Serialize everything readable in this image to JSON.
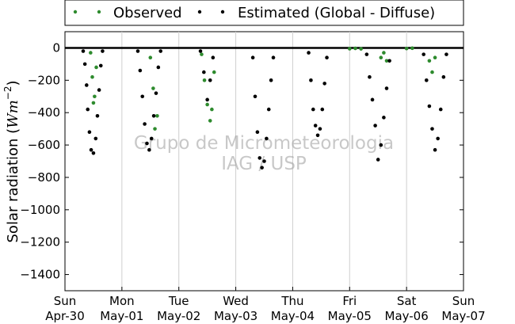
{
  "chart_data": {
    "type": "scatter",
    "title": "",
    "ylabel_text": "Solar radiation (",
    "ylabel_unit": "Wm",
    "ylabel_exp": "−2",
    "ylabel_close": ")",
    "xlabel": "",
    "ylim": [
      -1500,
      100
    ],
    "yticks": [
      0,
      -200,
      -400,
      -600,
      -800,
      -1000,
      -1200,
      -1400
    ],
    "xlim": [
      0,
      7
    ],
    "xticks": [
      {
        "x": 0,
        "day": "Sun",
        "date": "Apr-30"
      },
      {
        "x": 1,
        "day": "Mon",
        "date": "May-01"
      },
      {
        "x": 2,
        "day": "Tue",
        "date": "May-02"
      },
      {
        "x": 3,
        "day": "Wed",
        "date": "May-03"
      },
      {
        "x": 4,
        "day": "Thu",
        "date": "May-04"
      },
      {
        "x": 5,
        "day": "Fri",
        "date": "May-05"
      },
      {
        "x": 6,
        "day": "Sat",
        "date": "May-06"
      },
      {
        "x": 7,
        "day": "Sun",
        "date": "May-07"
      }
    ],
    "grid": "vertical",
    "legend_position": "top",
    "series": [
      {
        "name": "Observed",
        "color": "#2e8b2e",
        "points": [
          [
            0.45,
            -30
          ],
          [
            0.48,
            -180
          ],
          [
            0.5,
            -340
          ],
          [
            0.52,
            -300
          ],
          [
            0.55,
            -120
          ],
          [
            1.5,
            -60
          ],
          [
            1.55,
            -250
          ],
          [
            1.58,
            -500
          ],
          [
            1.62,
            -420
          ],
          [
            2.4,
            -40
          ],
          [
            2.45,
            -200
          ],
          [
            2.5,
            -350
          ],
          [
            2.55,
            -450
          ],
          [
            2.58,
            -380
          ],
          [
            2.62,
            -150
          ],
          [
            5.0,
            -5
          ],
          [
            5.1,
            -3
          ],
          [
            5.2,
            -6
          ],
          [
            5.55,
            -60
          ],
          [
            5.6,
            -30
          ],
          [
            5.65,
            -80
          ],
          [
            6.0,
            -4
          ],
          [
            6.1,
            -2
          ],
          [
            6.4,
            -80
          ],
          [
            6.45,
            -150
          ],
          [
            6.5,
            -60
          ]
        ]
      },
      {
        "name": "Estimated (Global - Diffuse)",
        "color": "#000000",
        "points": [
          [
            0.32,
            -20
          ],
          [
            0.35,
            -100
          ],
          [
            0.38,
            -230
          ],
          [
            0.4,
            -380
          ],
          [
            0.43,
            -520
          ],
          [
            0.46,
            -630
          ],
          [
            0.5,
            -650
          ],
          [
            0.54,
            -560
          ],
          [
            0.57,
            -420
          ],
          [
            0.6,
            -260
          ],
          [
            0.63,
            -110
          ],
          [
            0.66,
            -20
          ],
          [
            1.28,
            -20
          ],
          [
            1.32,
            -140
          ],
          [
            1.36,
            -300
          ],
          [
            1.4,
            -470
          ],
          [
            1.44,
            -590
          ],
          [
            1.48,
            -630
          ],
          [
            1.52,
            -560
          ],
          [
            1.56,
            -420
          ],
          [
            1.6,
            -280
          ],
          [
            1.64,
            -120
          ],
          [
            1.68,
            -20
          ],
          [
            2.38,
            -20
          ],
          [
            2.44,
            -150
          ],
          [
            2.5,
            -320
          ],
          [
            2.55,
            -200
          ],
          [
            2.6,
            -60
          ],
          [
            3.3,
            -60
          ],
          [
            3.34,
            -300
          ],
          [
            3.38,
            -520
          ],
          [
            3.42,
            -680
          ],
          [
            3.46,
            -740
          ],
          [
            3.5,
            -700
          ],
          [
            3.54,
            -560
          ],
          [
            3.58,
            -380
          ],
          [
            3.62,
            -200
          ],
          [
            3.66,
            -60
          ],
          [
            4.28,
            -30
          ],
          [
            4.32,
            -200
          ],
          [
            4.36,
            -380
          ],
          [
            4.4,
            -480
          ],
          [
            4.44,
            -540
          ],
          [
            4.48,
            -500
          ],
          [
            4.52,
            -380
          ],
          [
            4.56,
            -220
          ],
          [
            4.6,
            -60
          ],
          [
            5.3,
            -40
          ],
          [
            5.35,
            -180
          ],
          [
            5.4,
            -320
          ],
          [
            5.45,
            -480
          ],
          [
            5.5,
            -690
          ],
          [
            5.55,
            -600
          ],
          [
            5.6,
            -430
          ],
          [
            5.65,
            -250
          ],
          [
            5.7,
            -80
          ],
          [
            6.3,
            -40
          ],
          [
            6.35,
            -200
          ],
          [
            6.4,
            -360
          ],
          [
            6.45,
            -500
          ],
          [
            6.5,
            -630
          ],
          [
            6.55,
            -560
          ],
          [
            6.6,
            -380
          ],
          [
            6.65,
            -180
          ],
          [
            6.7,
            -40
          ]
        ]
      }
    ],
    "annotations": [
      "Grupo de Micrometeorologia",
      "IAG / USP"
    ]
  }
}
